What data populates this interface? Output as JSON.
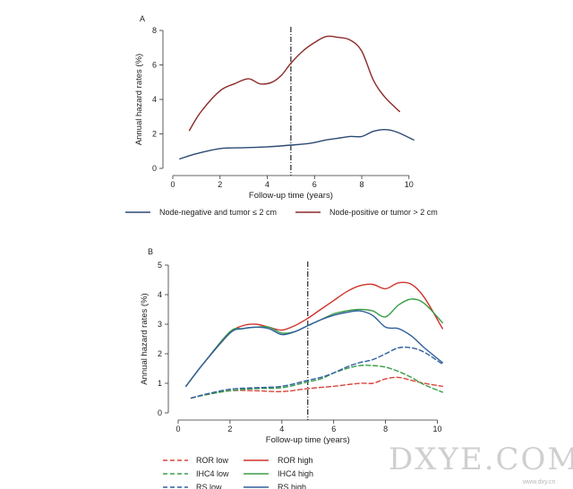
{
  "chart_data": [
    {
      "panel": "A",
      "type": "line",
      "xlabel": "Follow-up time (years)",
      "ylabel": "Annual hazard rates (%)",
      "xlim": [
        0,
        10.5
      ],
      "ylim": [
        0,
        8
      ],
      "xticks": [
        "0",
        "2",
        "4",
        "6",
        "8",
        "10"
      ],
      "yticks": [
        "0",
        "2",
        "4",
        "6",
        "8"
      ],
      "vline_x": 5,
      "legend_position": "bottom",
      "series": [
        {
          "name": "Node-negative and tumor ≤ 2 cm",
          "color": "#2b4a73",
          "dash": "solid",
          "x": [
            0.3,
            1,
            2,
            3,
            4,
            5,
            5.8,
            6.5,
            7,
            7.5,
            8,
            8.5,
            9,
            9.5,
            10.2
          ],
          "y": [
            0.55,
            0.85,
            1.15,
            1.2,
            1.25,
            1.35,
            1.45,
            1.65,
            1.75,
            1.85,
            1.85,
            2.15,
            2.25,
            2.1,
            1.65
          ]
        },
        {
          "name": "Node-positive or tumor > 2 cm",
          "color": "#8b2a2a",
          "dash": "solid",
          "x": [
            0.7,
            1.2,
            2,
            2.6,
            3.2,
            3.7,
            4.2,
            4.6,
            5,
            5.5,
            6,
            6.5,
            7,
            7.5,
            8,
            8.5,
            9,
            9.6
          ],
          "y": [
            2.2,
            3.3,
            4.5,
            4.9,
            5.2,
            4.9,
            5.0,
            5.4,
            6.1,
            6.8,
            7.3,
            7.65,
            7.6,
            7.45,
            6.8,
            5.1,
            4.1,
            3.3
          ]
        }
      ]
    },
    {
      "panel": "B",
      "type": "line",
      "xlabel": "Follow-up time (years)",
      "ylabel": "Annual hazard rates (%)",
      "xlim": [
        0,
        10.5
      ],
      "ylim": [
        0,
        5
      ],
      "xticks": [
        "0",
        "2",
        "4",
        "6",
        "8",
        "10"
      ],
      "yticks": [
        "0",
        "1",
        "2",
        "3",
        "4",
        "5"
      ],
      "vline_x": 5,
      "legend_position": "bottom",
      "series": [
        {
          "name": "ROR low",
          "color": "#d9463c",
          "dash": "dashed",
          "x": [
            0.5,
            1,
            2,
            3,
            4,
            5,
            6,
            7,
            7.5,
            8,
            8.5,
            9,
            9.5,
            10.2
          ],
          "y": [
            0.5,
            0.6,
            0.75,
            0.75,
            0.72,
            0.82,
            0.9,
            1.0,
            1.0,
            1.15,
            1.2,
            1.1,
            1.0,
            0.9
          ]
        },
        {
          "name": "ROR high",
          "color": "#d0342c",
          "dash": "solid",
          "x": [
            0.3,
            1,
            2,
            2.5,
            3,
            3.5,
            4,
            4.5,
            5,
            5.5,
            6,
            6.5,
            7,
            7.5,
            8,
            8.5,
            9,
            9.5,
            10.2
          ],
          "y": [
            0.9,
            1.7,
            2.7,
            2.95,
            3.0,
            2.9,
            2.8,
            2.95,
            3.2,
            3.5,
            3.8,
            4.1,
            4.3,
            4.35,
            4.2,
            4.4,
            4.35,
            3.9,
            2.85
          ]
        },
        {
          "name": "IHC4 low",
          "color": "#3a9e48",
          "dash": "dashed",
          "x": [
            0.5,
            1,
            2,
            3,
            4,
            5,
            5.5,
            6,
            6.5,
            7,
            7.5,
            8,
            8.5,
            9,
            9.5,
            10.2
          ],
          "y": [
            0.5,
            0.6,
            0.75,
            0.82,
            0.85,
            1.05,
            1.15,
            1.35,
            1.5,
            1.6,
            1.6,
            1.55,
            1.4,
            1.2,
            0.95,
            0.7
          ]
        },
        {
          "name": "IHC4 high",
          "color": "#3a9e48",
          "dash": "solid",
          "x": [
            0.3,
            1,
            2,
            2.5,
            3,
            3.5,
            4,
            4.5,
            5,
            5.5,
            6,
            6.5,
            7,
            7.5,
            8,
            8.5,
            9,
            9.5,
            10.2
          ],
          "y": [
            0.9,
            1.7,
            2.75,
            2.85,
            2.9,
            2.9,
            2.7,
            2.75,
            2.95,
            3.15,
            3.35,
            3.45,
            3.5,
            3.45,
            3.25,
            3.65,
            3.85,
            3.7,
            3.05
          ]
        },
        {
          "name": "RS low",
          "color": "#2f5f9e",
          "dash": "dashed",
          "x": [
            0.5,
            1,
            2,
            3,
            4,
            5,
            5.5,
            6,
            6.5,
            7,
            7.5,
            8,
            8.5,
            9,
            9.5,
            10.2
          ],
          "y": [
            0.5,
            0.62,
            0.8,
            0.85,
            0.9,
            1.1,
            1.2,
            1.35,
            1.55,
            1.7,
            1.8,
            2.0,
            2.2,
            2.2,
            2.05,
            1.65
          ]
        },
        {
          "name": "RS high",
          "color": "#2f5f9e",
          "dash": "solid",
          "x": [
            0.3,
            1,
            2,
            2.5,
            3,
            3.5,
            4,
            4.5,
            5,
            5.5,
            6,
            6.5,
            7,
            7.5,
            8,
            8.5,
            9,
            9.5,
            10.2
          ],
          "y": [
            0.9,
            1.7,
            2.7,
            2.85,
            2.9,
            2.85,
            2.65,
            2.75,
            2.95,
            3.15,
            3.3,
            3.4,
            3.45,
            3.3,
            2.9,
            2.85,
            2.6,
            2.2,
            1.7
          ]
        }
      ]
    }
  ],
  "watermark": {
    "main": "DXYE.COM",
    "sub": "www.dxy.cn"
  }
}
